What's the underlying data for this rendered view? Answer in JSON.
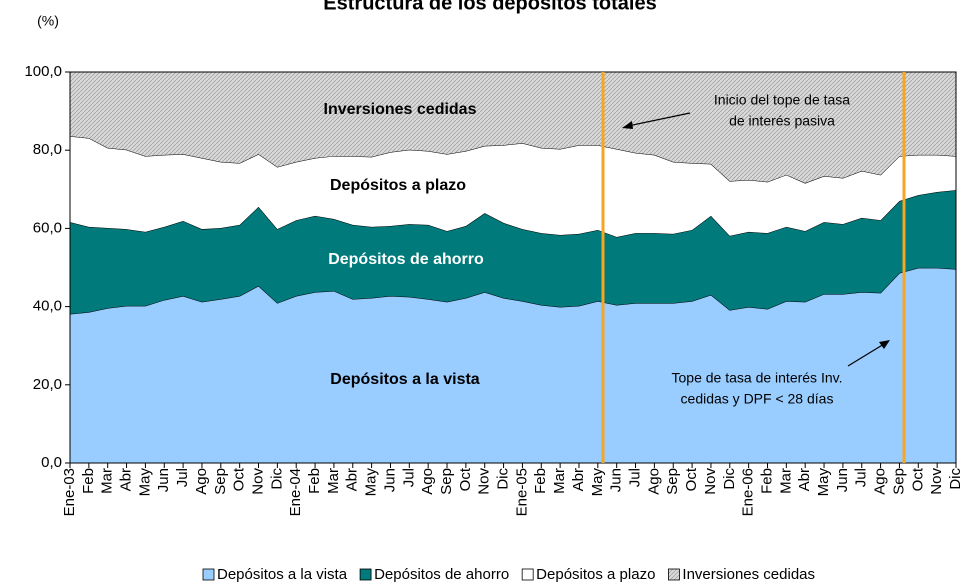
{
  "chart_data": {
    "type": "stacked-area",
    "title": "Estructura de los depósitos totales",
    "y_unit": "(%)",
    "categories": [
      "Ene-03",
      "Feb",
      "Mar",
      "Abr",
      "May",
      "Jun",
      "Jul",
      "Ago",
      "Sep",
      "Oct",
      "Nov",
      "Dic",
      "Ene-04",
      "Feb",
      "Mar",
      "Abr",
      "May",
      "Jun",
      "Jul",
      "Ago",
      "Sep",
      "Oct",
      "Nov",
      "Dic",
      "Ene-05",
      "Feb",
      "Mar",
      "Abr",
      "May",
      "Jun",
      "Jul",
      "Ago",
      "Sep",
      "Oct",
      "Nov",
      "Dic",
      "Ene-06",
      "Feb",
      "Mar",
      "Abr",
      "May",
      "Jun",
      "Jul",
      "Ago",
      "Sep",
      "Oct",
      "Nov",
      "Dic"
    ],
    "series": [
      {
        "name": "Depósitos a la vista",
        "color": "#99ccff",
        "values": [
          38.1,
          38.6,
          39.6,
          40.2,
          40.2,
          41.7,
          42.7,
          41.2,
          41.9,
          42.7,
          45.3,
          40.9,
          42.7,
          43.7,
          44.0,
          41.9,
          42.2,
          42.7,
          42.5,
          41.9,
          41.2,
          42.2,
          43.7,
          42.2,
          41.4,
          40.4,
          39.9,
          40.2,
          41.4,
          40.4,
          40.9,
          40.9,
          40.9,
          41.4,
          43.0,
          39.1,
          39.9,
          39.4,
          41.4,
          41.2,
          43.2,
          43.2,
          43.7,
          43.5,
          48.6,
          49.9,
          49.9,
          49.6
        ]
      },
      {
        "name": "Depósitos de ahorro",
        "color": "#007a7a",
        "values": [
          23.5,
          21.8,
          20.5,
          19.6,
          18.9,
          18.7,
          19.2,
          18.6,
          18.2,
          18.2,
          20.2,
          18.9,
          19.4,
          19.5,
          18.4,
          19.0,
          18.2,
          17.9,
          18.6,
          19.0,
          18.1,
          18.4,
          20.2,
          19.2,
          18.4,
          18.4,
          18.4,
          18.4,
          18.2,
          17.4,
          17.9,
          17.9,
          17.7,
          18.2,
          20.2,
          19.0,
          19.2,
          19.4,
          19.0,
          18.1,
          18.4,
          17.9,
          19.0,
          18.6,
          18.4,
          18.6,
          19.4,
          20.2
        ]
      },
      {
        "name": "Depósitos a plazo",
        "color": "#ffffff",
        "values": [
          22.0,
          22.7,
          20.5,
          20.3,
          19.4,
          18.4,
          17.1,
          18.2,
          16.9,
          15.8,
          13.5,
          15.9,
          14.9,
          14.8,
          16.1,
          17.6,
          17.9,
          18.9,
          19.0,
          18.9,
          19.7,
          19.2,
          17.2,
          19.9,
          22.0,
          21.8,
          22.0,
          22.7,
          21.7,
          22.5,
          20.5,
          20.0,
          18.4,
          17.1,
          13.3,
          14.0,
          13.3,
          13.1,
          13.3,
          12.3,
          11.8,
          11.8,
          12.0,
          11.6,
          11.5,
          10.3,
          9.5,
          8.7
        ]
      },
      {
        "name": "Inversiones cedidas",
        "color": "#d9d9d9",
        "hatched": true,
        "values": [
          16.4,
          16.9,
          19.4,
          19.9,
          21.5,
          21.2,
          21.0,
          22.0,
          23.0,
          23.3,
          21.0,
          24.3,
          23.0,
          22.0,
          21.5,
          21.5,
          21.7,
          20.5,
          19.9,
          20.2,
          21.0,
          20.2,
          18.9,
          18.7,
          18.2,
          19.4,
          19.7,
          18.7,
          18.7,
          19.7,
          20.7,
          21.2,
          23.0,
          23.3,
          23.5,
          27.9,
          27.6,
          28.1,
          26.3,
          28.4,
          26.6,
          27.1,
          25.3,
          26.3,
          21.5,
          21.2,
          21.2,
          21.5
        ]
      }
    ],
    "ylim": [
      0,
      100
    ],
    "yticks": [
      {
        "value": 0,
        "label": "0,0"
      },
      {
        "value": 20,
        "label": "20,0"
      },
      {
        "value": 40,
        "label": "40,0"
      },
      {
        "value": 60,
        "label": "60,0"
      },
      {
        "value": 80,
        "label": "80,0"
      },
      {
        "value": 100,
        "label": "100,0"
      }
    ],
    "annotations": {
      "series_labels": [
        "Depósitos a la vista",
        "Depósitos de ahorro",
        "Depósitos a plazo",
        "Inversiones cedidas"
      ],
      "note1": [
        "Inicio del tope de tasa",
        "de interés pasiva"
      ],
      "note2": [
        "Tope de tasa de interés Inv.",
        "cedidas y DPF < 28 días"
      ]
    },
    "legend": "bottom"
  }
}
